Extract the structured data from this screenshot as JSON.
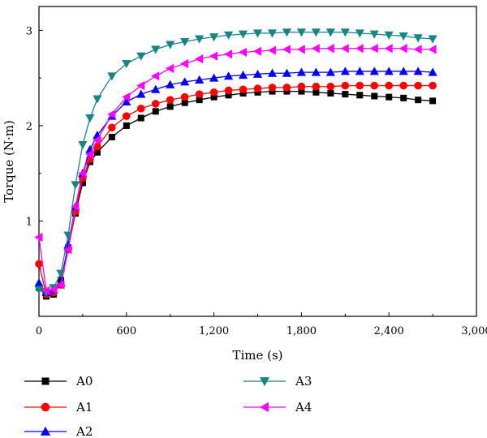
{
  "chart_data": {
    "type": "line",
    "xlabel": "Time (s)",
    "ylabel": "Torque (N·m)",
    "xlim": [
      0,
      3000
    ],
    "ylim": [
      0,
      3.25
    ],
    "xticks": [
      0,
      600,
      1200,
      1800,
      2400,
      3000
    ],
    "xtick_labels": [
      "0",
      "600",
      "1,200",
      "1,800",
      "2,400",
      "3,000"
    ],
    "yticks": [
      1,
      2,
      3
    ],
    "ytick_labels": [
      "1",
      "2",
      "3"
    ],
    "grid": false,
    "legend_position": "bottom",
    "series": [
      {
        "name": "A0",
        "marker": "square",
        "color": "#000000",
        "x": [
          0,
          50,
          100,
          150,
          200,
          250,
          300,
          350,
          400,
          500,
          600,
          700,
          800,
          900,
          1000,
          1100,
          1200,
          1300,
          1400,
          1500,
          1600,
          1700,
          1800,
          1900,
          2000,
          2100,
          2200,
          2300,
          2400,
          2500,
          2600,
          2700
        ],
        "y": [
          0.3,
          0.21,
          0.23,
          0.38,
          0.72,
          1.08,
          1.4,
          1.62,
          1.72,
          1.88,
          2.0,
          2.08,
          2.15,
          2.2,
          2.24,
          2.27,
          2.3,
          2.32,
          2.34,
          2.35,
          2.36,
          2.36,
          2.36,
          2.35,
          2.34,
          2.33,
          2.32,
          2.31,
          2.3,
          2.29,
          2.27,
          2.26
        ]
      },
      {
        "name": "A1",
        "marker": "circle",
        "color": "#ff0000",
        "x": [
          0,
          50,
          100,
          150,
          200,
          250,
          300,
          350,
          400,
          500,
          600,
          700,
          800,
          900,
          1000,
          1100,
          1200,
          1300,
          1400,
          1500,
          1600,
          1700,
          1800,
          1900,
          2000,
          2100,
          2200,
          2300,
          2400,
          2500,
          2600,
          2700
        ],
        "y": [
          0.55,
          0.23,
          0.25,
          0.33,
          0.7,
          1.1,
          1.45,
          1.65,
          1.78,
          1.98,
          2.1,
          2.18,
          2.23,
          2.27,
          2.3,
          2.33,
          2.35,
          2.37,
          2.38,
          2.39,
          2.4,
          2.4,
          2.41,
          2.41,
          2.41,
          2.42,
          2.42,
          2.42,
          2.42,
          2.42,
          2.42,
          2.42
        ]
      },
      {
        "name": "A2",
        "marker": "triangle-up",
        "color": "#0000ff",
        "x": [
          0,
          50,
          100,
          150,
          200,
          250,
          300,
          350,
          400,
          500,
          600,
          700,
          800,
          900,
          1000,
          1100,
          1200,
          1300,
          1400,
          1500,
          1600,
          1700,
          1800,
          1900,
          2000,
          2100,
          2200,
          2300,
          2400,
          2500,
          2600,
          2700
        ],
        "y": [
          0.35,
          0.25,
          0.28,
          0.35,
          0.75,
          1.15,
          1.5,
          1.75,
          1.9,
          2.1,
          2.25,
          2.33,
          2.38,
          2.43,
          2.46,
          2.48,
          2.5,
          2.52,
          2.53,
          2.54,
          2.55,
          2.55,
          2.56,
          2.56,
          2.56,
          2.57,
          2.57,
          2.57,
          2.57,
          2.57,
          2.57,
          2.56
        ]
      },
      {
        "name": "A3",
        "marker": "triangle-down",
        "color": "#188585",
        "x": [
          0,
          50,
          100,
          150,
          200,
          250,
          300,
          350,
          400,
          500,
          600,
          700,
          800,
          900,
          1000,
          1100,
          1200,
          1300,
          1400,
          1500,
          1600,
          1700,
          1800,
          1900,
          2000,
          2100,
          2200,
          2300,
          2400,
          2500,
          2600,
          2700
        ],
        "y": [
          0.28,
          0.25,
          0.3,
          0.45,
          0.85,
          1.38,
          1.8,
          2.08,
          2.28,
          2.52,
          2.65,
          2.73,
          2.8,
          2.85,
          2.88,
          2.91,
          2.93,
          2.95,
          2.96,
          2.97,
          2.97,
          2.98,
          2.98,
          2.98,
          2.98,
          2.98,
          2.97,
          2.96,
          2.95,
          2.94,
          2.92,
          2.91
        ]
      },
      {
        "name": "A4",
        "marker": "triangle-left",
        "color": "#ff00ff",
        "x": [
          0,
          50,
          100,
          150,
          200,
          250,
          300,
          350,
          400,
          500,
          600,
          700,
          800,
          900,
          1000,
          1100,
          1200,
          1300,
          1400,
          1500,
          1600,
          1700,
          1800,
          1900,
          2000,
          2100,
          2200,
          2300,
          2400,
          2500,
          2600,
          2700
        ],
        "y": [
          0.83,
          0.27,
          0.28,
          0.33,
          0.7,
          1.15,
          1.5,
          1.7,
          1.85,
          2.12,
          2.3,
          2.42,
          2.52,
          2.6,
          2.65,
          2.7,
          2.73,
          2.75,
          2.77,
          2.78,
          2.79,
          2.8,
          2.8,
          2.81,
          2.81,
          2.81,
          2.81,
          2.81,
          2.81,
          2.81,
          2.8,
          2.8
        ]
      }
    ]
  }
}
